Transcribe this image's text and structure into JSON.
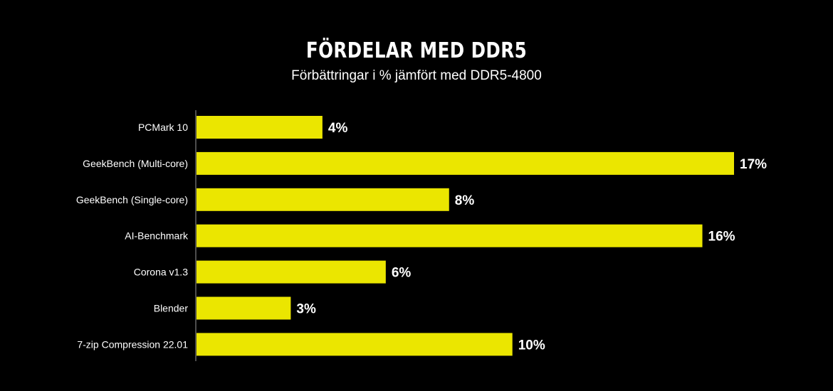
{
  "chart_data": {
    "type": "bar",
    "orientation": "horizontal",
    "title": "FÖRDELAR MED DDR5",
    "subtitle": "Förbättringar i % jämfört med DDR5-4800",
    "categories": [
      "PCMark 10",
      "GeekBench (Multi-core)",
      "GeekBench (Single-core)",
      "AI-Benchmark",
      "Corona v1.3",
      "Blender",
      "7-zip Compression 22.01"
    ],
    "values": [
      4,
      17,
      8,
      16,
      6,
      3,
      10
    ],
    "value_labels": [
      "4%",
      "17%",
      "8%",
      "16%",
      "6%",
      "3%",
      "10%"
    ],
    "unit": "%",
    "xlim": [
      0,
      17
    ],
    "grid": false,
    "legend": "none",
    "colors": {
      "bar": "#ebe600",
      "background": "#000000",
      "text": "#ffffff",
      "axis": "#9a9a9a"
    }
  }
}
